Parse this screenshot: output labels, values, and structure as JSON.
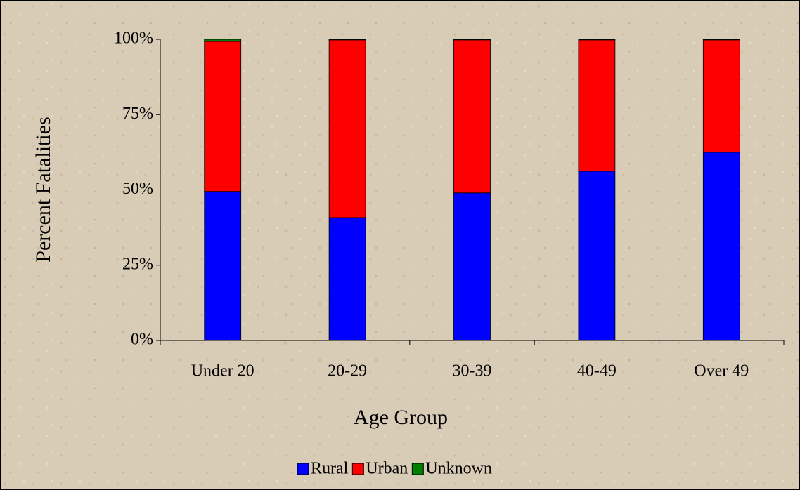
{
  "chart_data": {
    "type": "stacked_bar",
    "x_label": "Age Group",
    "y_label": "Percent Fatalities",
    "categories": [
      "Under 20",
      "20-29",
      "30-39",
      "40-49",
      "Over 49"
    ],
    "series": [
      {
        "name": "Rural",
        "color": "#0000ff",
        "values": [
          49.5,
          40.8,
          49,
          56.2,
          62.5
        ]
      },
      {
        "name": "Urban",
        "color": "#ff0000",
        "values": [
          49.8,
          59,
          50.8,
          43.6,
          37.3
        ]
      },
      {
        "name": "Unknown",
        "color": "#008000",
        "values": [
          0.7,
          0.2,
          0.2,
          0.2,
          0.2
        ]
      }
    ],
    "ylim": [
      0,
      100
    ],
    "yticks": [
      {
        "value": 0,
        "label": "0%"
      },
      {
        "value": 25,
        "label": "25%"
      },
      {
        "value": 50,
        "label": "50%"
      },
      {
        "value": 75,
        "label": "75%"
      },
      {
        "value": 100,
        "label": "100%"
      }
    ],
    "legend": "bottom"
  }
}
